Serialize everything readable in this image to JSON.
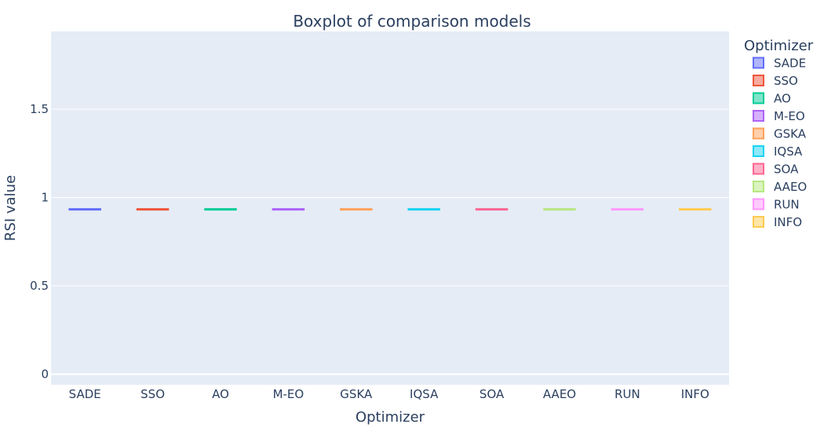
{
  "chart_data": {
    "type": "box",
    "title": "Boxplot of comparison models",
    "xlabel": "Optimizer",
    "ylabel": "RSI value",
    "ylim": [
      -0.06,
      1.94
    ],
    "yticks": [
      {
        "value": 0,
        "label": "0"
      },
      {
        "value": 0.5,
        "label": "0.5"
      },
      {
        "value": 1,
        "label": "1"
      },
      {
        "value": 1.5,
        "label": "1.5"
      }
    ],
    "grid": true,
    "legend_title": "Optimizer",
    "legend_position": "right",
    "categories": [
      "SADE",
      "SSO",
      "AO",
      "M-EO",
      "GSKA",
      "IQSA",
      "SOA",
      "AAEO",
      "RUN",
      "INFO"
    ],
    "series": [
      {
        "name": "SADE",
        "color": "#636efa",
        "value": 0.933
      },
      {
        "name": "SSO",
        "color": "#EF553B",
        "value": 0.933
      },
      {
        "name": "AO",
        "color": "#00cc96",
        "value": 0.933
      },
      {
        "name": "M-EO",
        "color": "#ab63fa",
        "value": 0.933
      },
      {
        "name": "GSKA",
        "color": "#FFA15A",
        "value": 0.933
      },
      {
        "name": "IQSA",
        "color": "#19d3f3",
        "value": 0.933
      },
      {
        "name": "SOA",
        "color": "#FF6692",
        "value": 0.933
      },
      {
        "name": "AAEO",
        "color": "#B6E880",
        "value": 0.933
      },
      {
        "name": "RUN",
        "color": "#FF97FF",
        "value": 0.933
      },
      {
        "name": "INFO",
        "color": "#FECB52",
        "value": 0.933
      }
    ]
  }
}
